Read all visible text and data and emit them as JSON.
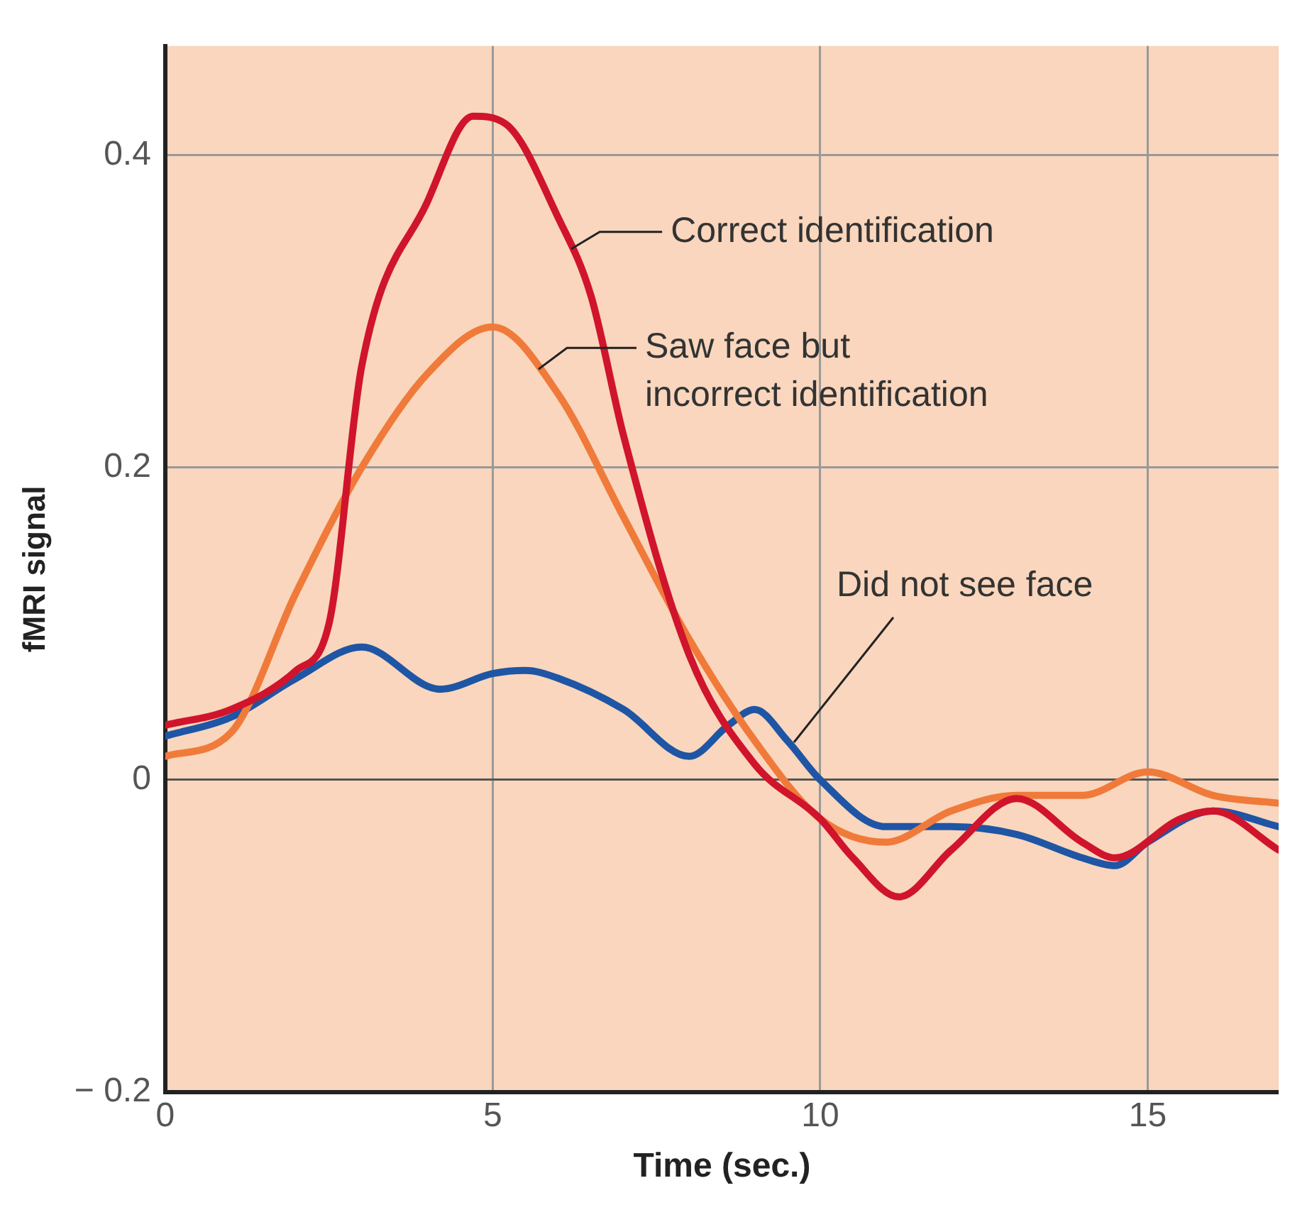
{
  "chart_data": {
    "type": "line",
    "xlabel": "Time (sec.)",
    "ylabel": "fMRI signal",
    "xlim": [
      0,
      17
    ],
    "ylim": [
      -0.2,
      0.47
    ],
    "xticks": [
      0,
      5,
      10,
      15
    ],
    "yticks": [
      {
        "value": -0.2,
        "label": "− 0.2"
      },
      0,
      0.2,
      0.4
    ],
    "grid": true,
    "legend": false,
    "marker": "none",
    "line_style": "solid",
    "series": [
      {
        "color": "#d0142c",
        "x": [
          0,
          1,
          2,
          2.5,
          3,
          4,
          4.7,
          5.2,
          6,
          6.5,
          7,
          8,
          9,
          10,
          10.5,
          11.2,
          12,
          13,
          14,
          14.5,
          15.5,
          16,
          17
        ],
        "values": [
          0.035,
          0.045,
          0.07,
          0.1,
          0.265,
          0.37,
          0.425,
          0.42,
          0.36,
          0.31,
          0.22,
          0.08,
          0.01,
          -0.025,
          -0.05,
          -0.075,
          -0.045,
          -0.012,
          -0.04,
          -0.05,
          -0.025,
          -0.02,
          -0.045
        ]
      },
      {
        "color": "#f07a3a",
        "x": [
          0,
          1,
          2,
          3,
          4,
          5,
          6,
          7,
          8,
          9,
          10,
          11,
          12,
          13,
          14,
          15,
          16,
          17
        ],
        "values": [
          0.015,
          0.03,
          0.12,
          0.2,
          0.26,
          0.29,
          0.247,
          0.168,
          0.09,
          0.025,
          -0.025,
          -0.04,
          -0.02,
          -0.01,
          -0.01,
          0.005,
          -0.01,
          -0.015
        ]
      },
      {
        "color": "#1f55a5",
        "x": [
          0,
          1,
          2,
          3,
          4,
          4.2,
          5,
          5.5,
          6,
          7,
          8,
          8.6,
          9,
          9.5,
          10,
          11,
          12,
          13,
          14,
          14.5,
          15,
          16,
          17
        ],
        "values": [
          0.028,
          0.04,
          0.065,
          0.085,
          0.06,
          0.058,
          0.068,
          0.07,
          0.065,
          0.045,
          0.015,
          0.035,
          0.045,
          0.025,
          0,
          -0.03,
          -0.03,
          -0.035,
          -0.05,
          -0.055,
          -0.04,
          -0.02,
          -0.03
        ]
      }
    ],
    "annotations": [
      {
        "text": "Correct identification",
        "x": 6.2,
        "y": 0.34
      },
      {
        "text": "Saw face but\nincorrect identification",
        "x": 5.7,
        "y": 0.263
      },
      {
        "text": "Did not see face",
        "x": 9.6,
        "y": 0.024
      }
    ]
  }
}
